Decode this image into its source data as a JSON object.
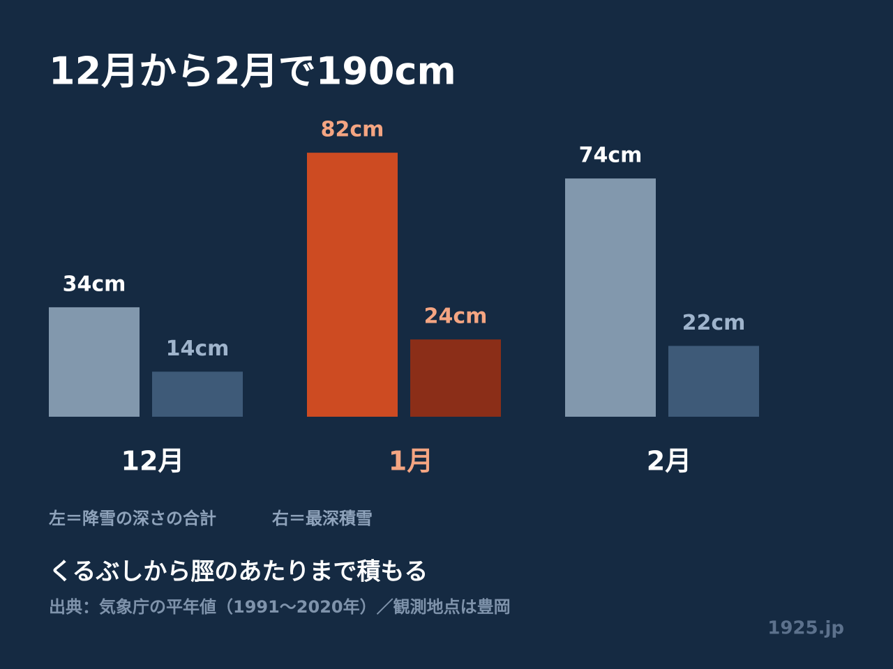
{
  "chart_data": {
    "type": "bar",
    "title": "12月から2月で190cm",
    "categories": [
      "12月",
      "1月",
      "2月"
    ],
    "category_colors": [
      "#ffffff",
      "#f4a582",
      "#ffffff"
    ],
    "series": [
      {
        "values": [
          34,
          82,
          74
        ],
        "value_labels": [
          "34cm",
          "82cm",
          "74cm"
        ],
        "colors": [
          "#8298ad",
          "#cd4b22",
          "#8298ad"
        ],
        "label_colors": [
          "#ffffff",
          "#f4a582",
          "#ffffff"
        ]
      },
      {
        "values": [
          14,
          24,
          22
        ],
        "value_labels": [
          "14cm",
          "24cm",
          "22cm"
        ],
        "colors": [
          "#3e5a78",
          "#8b2e18",
          "#3e5a78"
        ],
        "label_colors": [
          "#9fb4cc",
          "#f4a582",
          "#9fb4cc"
        ]
      }
    ],
    "notes": [
      "左＝降雪の深さの合計",
      "右＝最深積雪"
    ],
    "subtitle": "くるぶしから脛のあたりまで積もる",
    "source": "出典：気象庁の平年値（1991〜2020年）／観測地点は豊岡",
    "credit": "1925.jp"
  }
}
